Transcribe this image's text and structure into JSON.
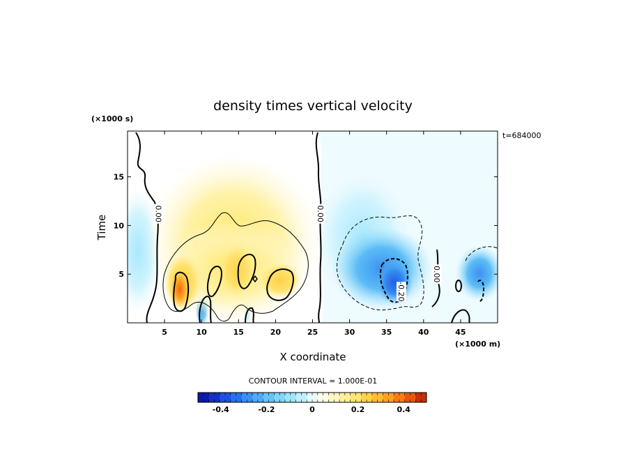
{
  "chart_data": {
    "type": "heatmap",
    "title": "density times vertical velocity",
    "xlabel": "X coordinate",
    "ylabel": "Time",
    "x_units": "(×1000 m)",
    "y_units": "(×1000 s)",
    "time_stamp": "t=684000",
    "xlim": [
      0,
      50
    ],
    "ylim": [
      0,
      19.7
    ],
    "x_ticks": [
      5,
      10,
      15,
      20,
      25,
      30,
      35,
      40,
      45
    ],
    "y_ticks": [
      5,
      10,
      15
    ],
    "contour_interval_text": "CONTOUR INTERVAL = 1.000E-01",
    "contour_labels": [
      {
        "text": "0.00",
        "x": 4.2,
        "y": 11.2
      },
      {
        "text": "0.00",
        "x": 26.1,
        "y": 11.2
      },
      {
        "text": "-0.20",
        "x": 37.0,
        "y": 3.2
      },
      {
        "text": "0.00",
        "x": 41.8,
        "y": 5.0
      }
    ],
    "colorbar": {
      "range": [
        -0.5,
        0.5
      ],
      "tick_values": [
        -0.4,
        -0.2,
        0,
        0.2,
        0.4
      ],
      "tick_labels": [
        "-0.4",
        "-0.2",
        "0",
        "0.2",
        "0.4"
      ],
      "colors": [
        "#0a1aa8",
        "#1630c8",
        "#1e50e0",
        "#2870ee",
        "#3a90f4",
        "#4eaaf6",
        "#66c2f8",
        "#82d4fa",
        "#a0e4fc",
        "#c0f0fd",
        "#e6f9fe",
        "#fffce8",
        "#fff6c4",
        "#ffee9c",
        "#ffe472",
        "#ffd24c",
        "#ffbc34",
        "#ffa020",
        "#f87c14",
        "#e8560e",
        "#c43008"
      ]
    },
    "field_centers": [
      {
        "x": 7.0,
        "y": 3.0,
        "value": 0.35
      },
      {
        "x": 13.5,
        "y": 5.0,
        "value": 0.24
      },
      {
        "x": 21.0,
        "y": 4.0,
        "value": 0.25
      },
      {
        "x": 15.0,
        "y": 12.0,
        "value": 0.08
      },
      {
        "x": 36.3,
        "y": 3.5,
        "value": -0.3
      },
      {
        "x": 33.5,
        "y": 7.0,
        "value": -0.15
      },
      {
        "x": 46.0,
        "y": 4.0,
        "value": -0.15
      }
    ]
  }
}
